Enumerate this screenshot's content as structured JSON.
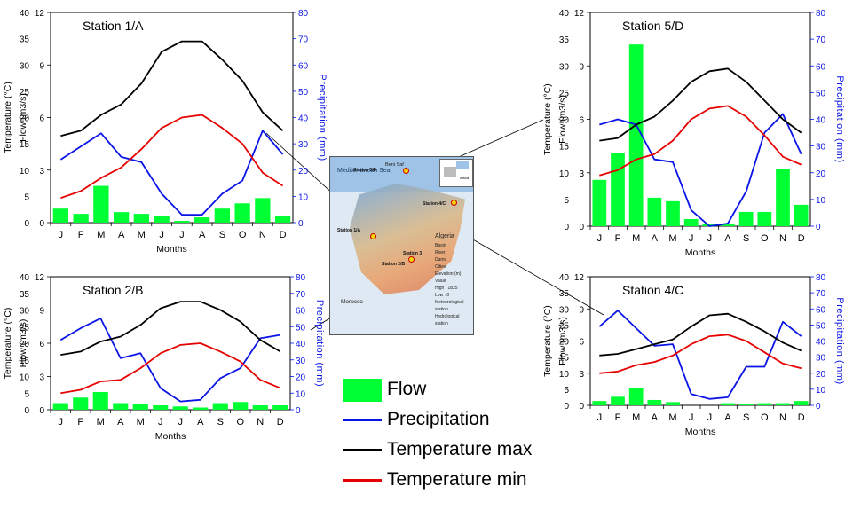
{
  "months": [
    "J",
    "F",
    "M",
    "A",
    "M",
    "J",
    "J",
    "A",
    "S",
    "O",
    "N",
    "D"
  ],
  "colors": {
    "flow": "#00ff33",
    "precip": "#0a14e6",
    "tmax": "#000000",
    "tmin": "#e60000"
  },
  "axes": {
    "temp_label": "Temperature (°C)",
    "flow_label": "Flow (m3/s)",
    "precip_label": "Precipitation (mm)",
    "x_label": "Months",
    "temp_ticks": [
      "0",
      "5",
      "10",
      "15",
      "20",
      "25",
      "30",
      "35",
      "40"
    ],
    "flow_ticks": [
      "0",
      "3",
      "6",
      "9",
      "12"
    ],
    "precip_ticks": [
      "0",
      "10",
      "20",
      "30",
      "40",
      "50",
      "60",
      "70",
      "80"
    ]
  },
  "legend": {
    "flow": "Flow",
    "precip": "Precipitation",
    "tmax": "Temperature max",
    "tmin": "Temperature min"
  },
  "map": {
    "sea": "Mediterranean Sea",
    "country_algeria": "Algeria",
    "country_morocco": "Morocco",
    "inset_europe": "Europe",
    "inset_africa": "Africa",
    "legend_items": [
      "Basin",
      "River",
      "Dams",
      "Cities",
      "Elevation (m)",
      "Value",
      "High : 1825",
      "Low : 0",
      "Meteorological station",
      "Hydrological station"
    ],
    "stations": [
      "Station 1/A",
      "Station 2/B",
      "Station 3",
      "Station 4/C",
      "Station 5/D"
    ],
    "city": "Beni Saf"
  },
  "chart_data": [
    {
      "type": "bar+line",
      "title": "Station 1/A",
      "xlabel": "Months",
      "ylim_temp": [
        0,
        40
      ],
      "ylim_flow": [
        0,
        12
      ],
      "ylim_precip": [
        0,
        80
      ],
      "series": [
        {
          "name": "Flow",
          "axis": "flow",
          "values": [
            0.8,
            0.5,
            2.1,
            0.6,
            0.5,
            0.4,
            0.1,
            0.3,
            0.8,
            1.1,
            1.4,
            0.4
          ]
        },
        {
          "name": "Precipitation",
          "axis": "precip",
          "values": [
            24,
            29,
            34,
            25,
            23,
            11,
            3,
            3,
            11,
            16,
            35,
            26
          ]
        },
        {
          "name": "Temperature max",
          "axis": "temp",
          "values": [
            16.5,
            17.5,
            20.5,
            22.5,
            26.5,
            32.5,
            34.5,
            34.5,
            31.0,
            27.0,
            21.0,
            17.5
          ]
        },
        {
          "name": "Temperature min",
          "axis": "temp",
          "values": [
            4.7,
            6.0,
            8.5,
            10.5,
            14.0,
            18.0,
            20.0,
            20.5,
            18.0,
            15.0,
            9.5,
            7.0
          ]
        }
      ]
    },
    {
      "type": "bar+line",
      "title": "Station 5/D",
      "xlabel": "Months",
      "ylim_temp": [
        0,
        40
      ],
      "ylim_flow": [
        0,
        12
      ],
      "ylim_precip": [
        0,
        80
      ],
      "series": [
        {
          "name": "Flow",
          "axis": "flow",
          "values": [
            2.6,
            4.1,
            10.2,
            1.6,
            1.4,
            0.4,
            0.1,
            0.1,
            0.8,
            0.8,
            3.2,
            1.2
          ]
        },
        {
          "name": "Precipitation",
          "axis": "precip",
          "values": [
            38,
            40,
            38,
            25,
            24,
            6,
            0,
            1,
            13,
            35,
            42,
            27
          ]
        },
        {
          "name": "Temperature max",
          "axis": "temp",
          "values": [
            16.0,
            16.5,
            19.0,
            20.5,
            23.5,
            27.0,
            29.0,
            29.5,
            27.0,
            23.5,
            20.0,
            17.5
          ]
        },
        {
          "name": "Temperature min",
          "axis": "temp",
          "values": [
            9.5,
            10.5,
            12.5,
            13.5,
            16.0,
            20.0,
            22.0,
            22.5,
            20.5,
            17.0,
            13.0,
            11.5
          ]
        }
      ]
    },
    {
      "type": "bar+line",
      "title": "Station 2/B",
      "xlabel": "Months",
      "ylim_temp": [
        0,
        40
      ],
      "ylim_flow": [
        0,
        12
      ],
      "ylim_precip": [
        0,
        80
      ],
      "series": [
        {
          "name": "Flow",
          "axis": "flow",
          "values": [
            0.6,
            1.1,
            1.6,
            0.6,
            0.5,
            0.4,
            0.3,
            0.2,
            0.6,
            0.7,
            0.4,
            0.4
          ]
        },
        {
          "name": "Precipitation",
          "axis": "precip",
          "values": [
            42,
            49,
            55,
            31,
            34,
            13,
            5,
            6,
            19,
            25,
            43,
            45
          ]
        },
        {
          "name": "Temperature max",
          "axis": "temp",
          "values": [
            16.5,
            17.5,
            20.5,
            22.0,
            25.5,
            30.5,
            32.5,
            32.5,
            30.0,
            26.5,
            21.0,
            17.5
          ]
        },
        {
          "name": "Temperature min",
          "axis": "temp",
          "values": [
            5.0,
            6.0,
            8.5,
            9.0,
            12.5,
            17.0,
            19.5,
            20.0,
            17.5,
            14.5,
            9.0,
            6.5
          ]
        }
      ]
    },
    {
      "type": "bar+line",
      "title": "Station 4/C",
      "xlabel": "Months",
      "ylim_temp": [
        0,
        40
      ],
      "ylim_flow": [
        0,
        12
      ],
      "ylim_precip": [
        0,
        80
      ],
      "series": [
        {
          "name": "Flow",
          "axis": "flow",
          "values": [
            0.4,
            0.8,
            1.6,
            0.5,
            0.3,
            0.0,
            0.0,
            0.2,
            0.1,
            0.2,
            0.2,
            0.4
          ]
        },
        {
          "name": "Precipitation",
          "axis": "precip",
          "values": [
            49,
            59,
            48,
            37,
            38,
            7,
            4,
            5,
            24,
            24,
            52,
            43
          ]
        },
        {
          "name": "Temperature max",
          "axis": "temp",
          "values": [
            15.5,
            16.0,
            17.5,
            19.0,
            20.5,
            24.5,
            28.0,
            28.5,
            26.0,
            23.0,
            19.5,
            17.0
          ]
        },
        {
          "name": "Temperature min",
          "axis": "temp",
          "values": [
            10.0,
            10.5,
            12.5,
            13.5,
            15.5,
            19.0,
            21.5,
            22.0,
            20.0,
            16.5,
            13.0,
            11.5
          ]
        }
      ]
    }
  ]
}
